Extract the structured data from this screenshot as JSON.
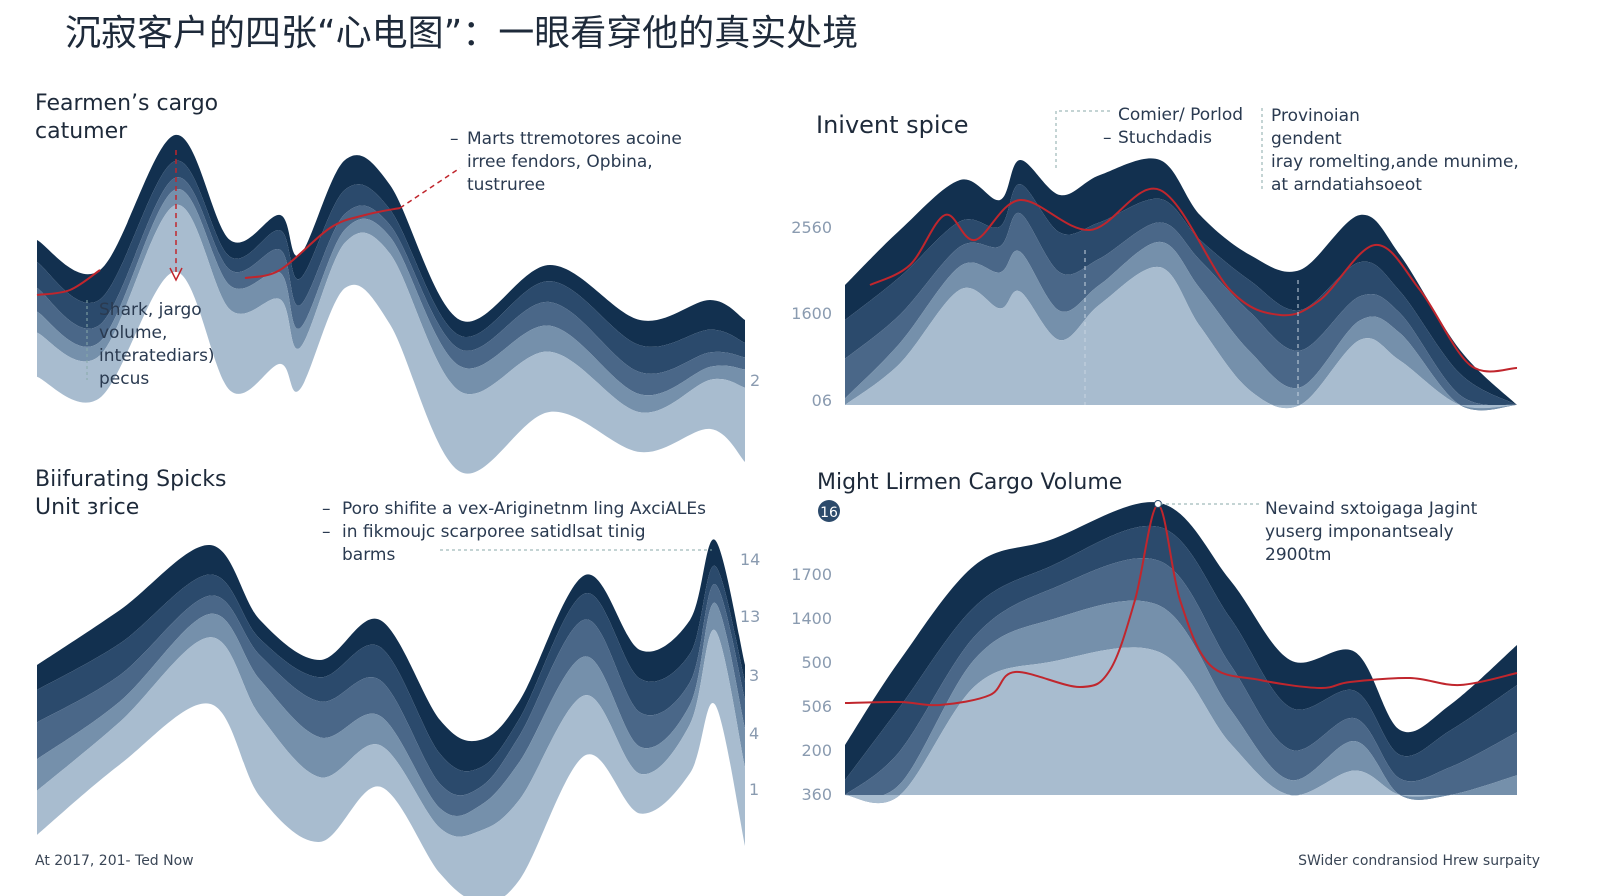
{
  "title": "沉寂客户的四张“心电图”：一眼看穿他的真实处境",
  "panels": [
    {
      "title": [
        "Fearmen’s cargo",
        "catumer"
      ],
      "annotation": [
        "Marts ttremotores acoine",
        "irree fendors, Opbina,",
        "tustruree"
      ],
      "note": [
        "Shark, jargo",
        "volume,",
        "interatediars)",
        "pecus"
      ],
      "tick_labels": [
        "2"
      ]
    },
    {
      "title": [
        "Inivent spice"
      ],
      "annotation": [
        "Comier/ Porlod",
        "Stuchdadis"
      ],
      "note": [
        "Provinoian",
        "gendent",
        "iray romelting,ande munime,",
        "at arndatiahsoeot"
      ],
      "tick_labels": [
        "2560",
        "1600",
        "06"
      ]
    },
    {
      "title": [
        "Biifurating Spicks",
        "Unit ɜrice"
      ],
      "annotation": [
        "Poro shifite a vex-Ariginetnm ling AxciALEs",
        "in fikmoujc scarporee satidlsat tinig",
        "barms"
      ],
      "tick_labels": [
        "14",
        "13",
        "3",
        "4",
        "1"
      ]
    },
    {
      "title": [
        "Might Lirmen Cargo Volume"
      ],
      "badge": "16",
      "annotation": [
        "Nevaind sxtoigaga Jagint",
        "yuserg imponantsealy",
        "2900tm"
      ],
      "tick_labels": [
        "1700",
        "1400",
        "500",
        "506",
        "200",
        "360"
      ]
    }
  ],
  "footer": {
    "left": "At 2017, 201- Ted Now",
    "right": "SWider condransiod Hrew surpaity"
  }
}
